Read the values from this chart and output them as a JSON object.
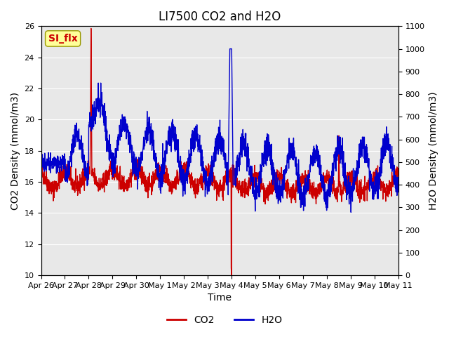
{
  "title": "LI7500 CO2 and H2O",
  "xlabel": "Time",
  "ylabel_left": "CO2 Density (mmol/m3)",
  "ylabel_right": "H2O Density (mmol/m3)",
  "ylim_left": [
    10,
    26
  ],
  "ylim_right": [
    0,
    1100
  ],
  "yticks_left": [
    10,
    12,
    14,
    16,
    18,
    20,
    22,
    24,
    26
  ],
  "yticks_right": [
    0,
    100,
    200,
    300,
    400,
    500,
    600,
    700,
    800,
    900,
    1000,
    1100
  ],
  "xtick_labels": [
    "Apr 26",
    "Apr 27",
    "Apr 28",
    "Apr 29",
    "Apr 30",
    "May 1",
    "May 2",
    "May 3",
    "May 4",
    "May 5",
    "May 6",
    "May 7",
    "May 8",
    "May 9",
    "May 10",
    "May 11"
  ],
  "co2_color": "#cc0000",
  "h2o_color": "#0000cc",
  "background_color": "#e8e8e8",
  "annotation_text": "SI_flx",
  "annotation_bg": "#ffff99",
  "annotation_border": "#999900",
  "legend_co2": "CO2",
  "legend_h2o": "H2O",
  "title_fontsize": 12,
  "axis_fontsize": 10,
  "tick_fontsize": 8
}
